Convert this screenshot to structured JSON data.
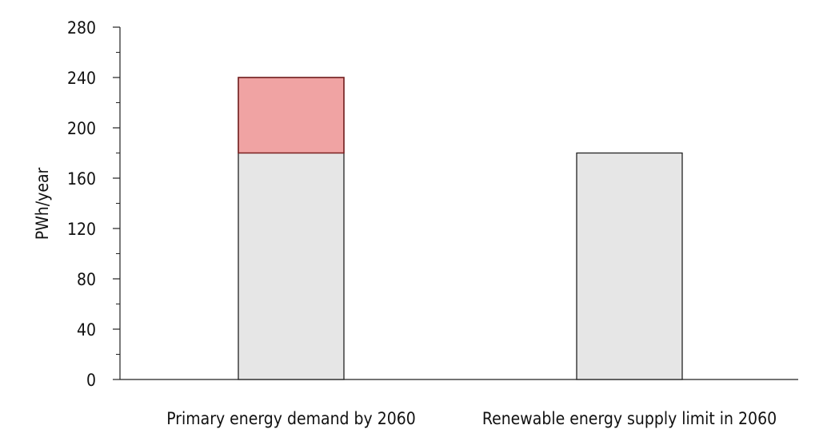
{
  "chart_data": {
    "type": "bar",
    "stacked": true,
    "categories": [
      "Primary energy demand by 2060",
      "Renewable energy supply limit in 2060"
    ],
    "series": [
      {
        "values": [
          180,
          180
        ],
        "color": "#e6e6e6"
      },
      {
        "values": [
          60,
          0
        ],
        "color": "#f0a3a3"
      }
    ],
    "stack_total_outline": [
      true,
      false
    ],
    "outline_color": "#7a1f1f",
    "ylabel": "PWh/year",
    "ylim": [
      0,
      280
    ],
    "yticks": [
      0,
      40,
      80,
      120,
      160,
      200,
      240,
      280
    ],
    "minor_tick_step": 20,
    "grid": false
  }
}
